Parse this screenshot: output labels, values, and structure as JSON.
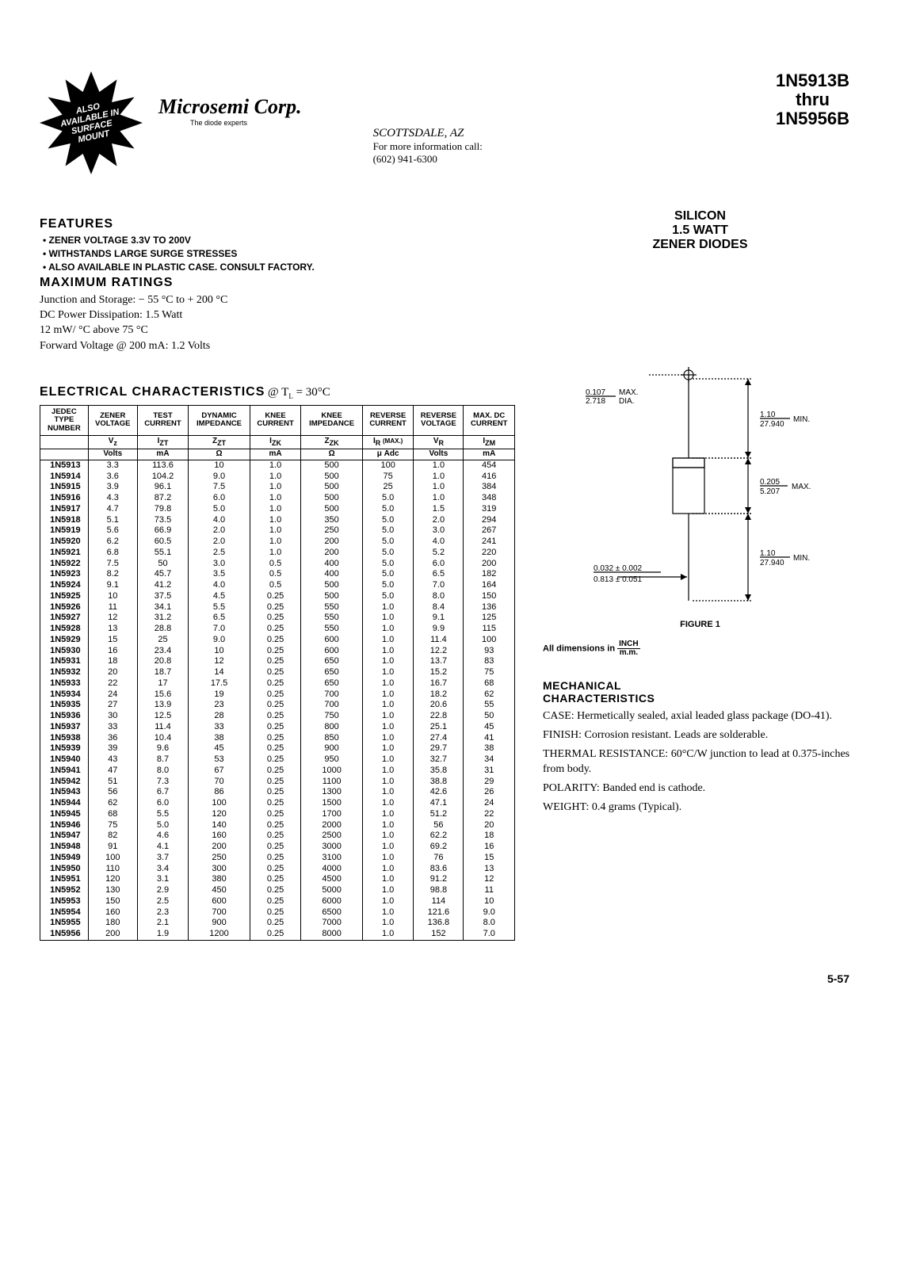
{
  "header": {
    "badge_lines": [
      "ALSO",
      "AVAILABLE IN",
      "SURFACE",
      "MOUNT"
    ],
    "company": "Microsemi Corp.",
    "tagline": "The diode experts",
    "city": "SCOTTSDALE, AZ",
    "info1": "For more information call:",
    "info2": "(602) 941-6300",
    "part_top": "1N5913B",
    "part_mid": "thru",
    "part_bot": "1N5956B"
  },
  "silicon": {
    "l1": "SILICON",
    "l2": "1.5 WATT",
    "l3": "ZENER DIODES"
  },
  "features": {
    "title": "FEATURES",
    "items": [
      "ZENER VOLTAGE 3.3V TO 200V",
      "WITHSTANDS LARGE SURGE STRESSES",
      "ALSO AVAILABLE IN PLASTIC CASE. CONSULT FACTORY."
    ]
  },
  "max_ratings": {
    "title": "MAXIMUM RATINGS",
    "lines": [
      "Junction and Storage:  − 55 °C to  + 200 °C",
      "DC Power Dissipation: 1.5 Watt",
      "12 mW/ °C above 75 °C",
      "Forward Voltage @ 200 mA: 1.2 Volts"
    ]
  },
  "elec": {
    "title": "ELECTRICAL CHARACTERISTICS",
    "condition": " @ TL = 30°C",
    "columns": [
      {
        "h1": "JEDEC",
        "h2": "TYPE",
        "h3": "NUMBER",
        "sym": "",
        "unit": ""
      },
      {
        "h1": "ZENER",
        "h2": "VOLTAGE",
        "h3": "",
        "sym": "Vz",
        "unit": "Volts"
      },
      {
        "h1": "TEST",
        "h2": "CURRENT",
        "h3": "",
        "sym": "IZT",
        "unit": "mA"
      },
      {
        "h1": "DYNAMIC",
        "h2": "IMPEDANCE",
        "h3": "",
        "sym": "ZZT",
        "unit": "Ω"
      },
      {
        "h1": "KNEE",
        "h2": "CURRENT",
        "h3": "",
        "sym": "IZK",
        "unit": "mA"
      },
      {
        "h1": "KNEE",
        "h2": "IMPEDANCE",
        "h3": "",
        "sym": "ZZK",
        "unit": "Ω"
      },
      {
        "h1": "REVERSE",
        "h2": "CURRENT",
        "h3": "",
        "sym": "IR (MAX.)",
        "unit": "μ Adc"
      },
      {
        "h1": "REVERSE",
        "h2": "VOLTAGE",
        "h3": "",
        "sym": "VR",
        "unit": "Volts"
      },
      {
        "h1": "MAX. DC",
        "h2": "CURRENT",
        "h3": "",
        "sym": "IZM",
        "unit": "mA"
      }
    ],
    "rows": [
      [
        "1N5913",
        "3.3",
        "113.6",
        "10",
        "1.0",
        "500",
        "100",
        "1.0",
        "454"
      ],
      [
        "1N5914",
        "3.6",
        "104.2",
        "9.0",
        "1.0",
        "500",
        "75",
        "1.0",
        "416"
      ],
      [
        "1N5915",
        "3.9",
        "96.1",
        "7.5",
        "1.0",
        "500",
        "25",
        "1.0",
        "384"
      ],
      [
        "1N5916",
        "4.3",
        "87.2",
        "6.0",
        "1.0",
        "500",
        "5.0",
        "1.0",
        "348"
      ],
      [
        "1N5917",
        "4.7",
        "79.8",
        "5.0",
        "1.0",
        "500",
        "5.0",
        "1.5",
        "319"
      ],
      [
        "1N5918",
        "5.1",
        "73.5",
        "4.0",
        "1.0",
        "350",
        "5.0",
        "2.0",
        "294"
      ],
      [
        "1N5919",
        "5.6",
        "66.9",
        "2.0",
        "1.0",
        "250",
        "5.0",
        "3.0",
        "267"
      ],
      [
        "1N5920",
        "6.2",
        "60.5",
        "2.0",
        "1.0",
        "200",
        "5.0",
        "4.0",
        "241"
      ],
      [
        "1N5921",
        "6.8",
        "55.1",
        "2.5",
        "1.0",
        "200",
        "5.0",
        "5.2",
        "220"
      ],
      [
        "1N5922",
        "7.5",
        "50",
        "3.0",
        "0.5",
        "400",
        "5.0",
        "6.0",
        "200"
      ],
      [
        "1N5923",
        "8.2",
        "45.7",
        "3.5",
        "0.5",
        "400",
        "5.0",
        "6.5",
        "182"
      ],
      [
        "1N5924",
        "9.1",
        "41.2",
        "4.0",
        "0.5",
        "500",
        "5.0",
        "7.0",
        "164"
      ],
      [
        "1N5925",
        "10",
        "37.5",
        "4.5",
        "0.25",
        "500",
        "5.0",
        "8.0",
        "150"
      ],
      [
        "1N5926",
        "11",
        "34.1",
        "5.5",
        "0.25",
        "550",
        "1.0",
        "8.4",
        "136"
      ],
      [
        "1N5927",
        "12",
        "31.2",
        "6.5",
        "0.25",
        "550",
        "1.0",
        "9.1",
        "125"
      ],
      [
        "1N5928",
        "13",
        "28.8",
        "7.0",
        "0.25",
        "550",
        "1.0",
        "9.9",
        "115"
      ],
      [
        "1N5929",
        "15",
        "25",
        "9.0",
        "0.25",
        "600",
        "1.0",
        "11.4",
        "100"
      ],
      [
        "1N5930",
        "16",
        "23.4",
        "10",
        "0.25",
        "600",
        "1.0",
        "12.2",
        "93"
      ],
      [
        "1N5931",
        "18",
        "20.8",
        "12",
        "0.25",
        "650",
        "1.0",
        "13.7",
        "83"
      ],
      [
        "1N5932",
        "20",
        "18.7",
        "14",
        "0.25",
        "650",
        "1.0",
        "15.2",
        "75"
      ],
      [
        "1N5933",
        "22",
        "17",
        "17.5",
        "0.25",
        "650",
        "1.0",
        "16.7",
        "68"
      ],
      [
        "1N5934",
        "24",
        "15.6",
        "19",
        "0.25",
        "700",
        "1.0",
        "18.2",
        "62"
      ],
      [
        "1N5935",
        "27",
        "13.9",
        "23",
        "0.25",
        "700",
        "1.0",
        "20.6",
        "55"
      ],
      [
        "1N5936",
        "30",
        "12.5",
        "28",
        "0.25",
        "750",
        "1.0",
        "22.8",
        "50"
      ],
      [
        "1N5937",
        "33",
        "11.4",
        "33",
        "0.25",
        "800",
        "1.0",
        "25.1",
        "45"
      ],
      [
        "1N5938",
        "36",
        "10.4",
        "38",
        "0.25",
        "850",
        "1.0",
        "27.4",
        "41"
      ],
      [
        "1N5939",
        "39",
        "9.6",
        "45",
        "0.25",
        "900",
        "1.0",
        "29.7",
        "38"
      ],
      [
        "1N5940",
        "43",
        "8.7",
        "53",
        "0.25",
        "950",
        "1.0",
        "32.7",
        "34"
      ],
      [
        "1N5941",
        "47",
        "8.0",
        "67",
        "0.25",
        "1000",
        "1.0",
        "35.8",
        "31"
      ],
      [
        "1N5942",
        "51",
        "7.3",
        "70",
        "0.25",
        "1100",
        "1.0",
        "38.8",
        "29"
      ],
      [
        "1N5943",
        "56",
        "6.7",
        "86",
        "0.25",
        "1300",
        "1.0",
        "42.6",
        "26"
      ],
      [
        "1N5944",
        "62",
        "6.0",
        "100",
        "0.25",
        "1500",
        "1.0",
        "47.1",
        "24"
      ],
      [
        "1N5945",
        "68",
        "5.5",
        "120",
        "0.25",
        "1700",
        "1.0",
        "51.2",
        "22"
      ],
      [
        "1N5946",
        "75",
        "5.0",
        "140",
        "0.25",
        "2000",
        "1.0",
        "56",
        "20"
      ],
      [
        "1N5947",
        "82",
        "4.6",
        "160",
        "0.25",
        "2500",
        "1.0",
        "62.2",
        "18"
      ],
      [
        "1N5948",
        "91",
        "4.1",
        "200",
        "0.25",
        "3000",
        "1.0",
        "69.2",
        "16"
      ],
      [
        "1N5949",
        "100",
        "3.7",
        "250",
        "0.25",
        "3100",
        "1.0",
        "76",
        "15"
      ],
      [
        "1N5950",
        "110",
        "3.4",
        "300",
        "0.25",
        "4000",
        "1.0",
        "83.6",
        "13"
      ],
      [
        "1N5951",
        "120",
        "3.1",
        "380",
        "0.25",
        "4500",
        "1.0",
        "91.2",
        "12"
      ],
      [
        "1N5952",
        "130",
        "2.9",
        "450",
        "0.25",
        "5000",
        "1.0",
        "98.8",
        "11"
      ],
      [
        "1N5953",
        "150",
        "2.5",
        "600",
        "0.25",
        "6000",
        "1.0",
        "114",
        "10"
      ],
      [
        "1N5954",
        "160",
        "2.3",
        "700",
        "0.25",
        "6500",
        "1.0",
        "121.6",
        "9.0"
      ],
      [
        "1N5955",
        "180",
        "2.1",
        "900",
        "0.25",
        "7000",
        "1.0",
        "136.8",
        "8.0"
      ],
      [
        "1N5956",
        "200",
        "1.9",
        "1200",
        "0.25",
        "8000",
        "1.0",
        "152",
        "7.0"
      ]
    ]
  },
  "figure": {
    "dim_dia_top": "0.107",
    "dim_dia_bot": "2.718",
    "dim_dia_label": "MAX.\nDIA.",
    "lead_top": "1.10",
    "lead_bot": "27.940",
    "lead_label": "MIN.",
    "body_top": "0.205",
    "body_bot": "5.207",
    "body_label": "MAX.",
    "lead2_top": "1.10",
    "lead2_bot": "27.940",
    "lead2_label": "MIN.",
    "wire_top": "0.032 ± 0.002",
    "wire_bot": "0.813 ± 0.051",
    "label": "FIGURE 1",
    "note": "All dimensions in",
    "note_frac_top": "INCH",
    "note_frac_bot": "m.m."
  },
  "mech": {
    "title": "MECHANICAL\nCHARACTERISTICS",
    "lines": [
      {
        "head": "CASE:",
        "body": "Hermetically sealed, axial leaded glass package (DO-41)."
      },
      {
        "head": "FINISH:",
        "body": "Corrosion resistant. Leads are solderable."
      },
      {
        "head": "THERMAL RESISTANCE:",
        "body": "60°C/W junction to lead at 0.375-inches from body."
      },
      {
        "head": "POLARITY:",
        "body": "Banded end is cathode."
      },
      {
        "head": "WEIGHT:",
        "body": "0.4 grams (Typical)."
      }
    ]
  },
  "page_num": "5-57"
}
